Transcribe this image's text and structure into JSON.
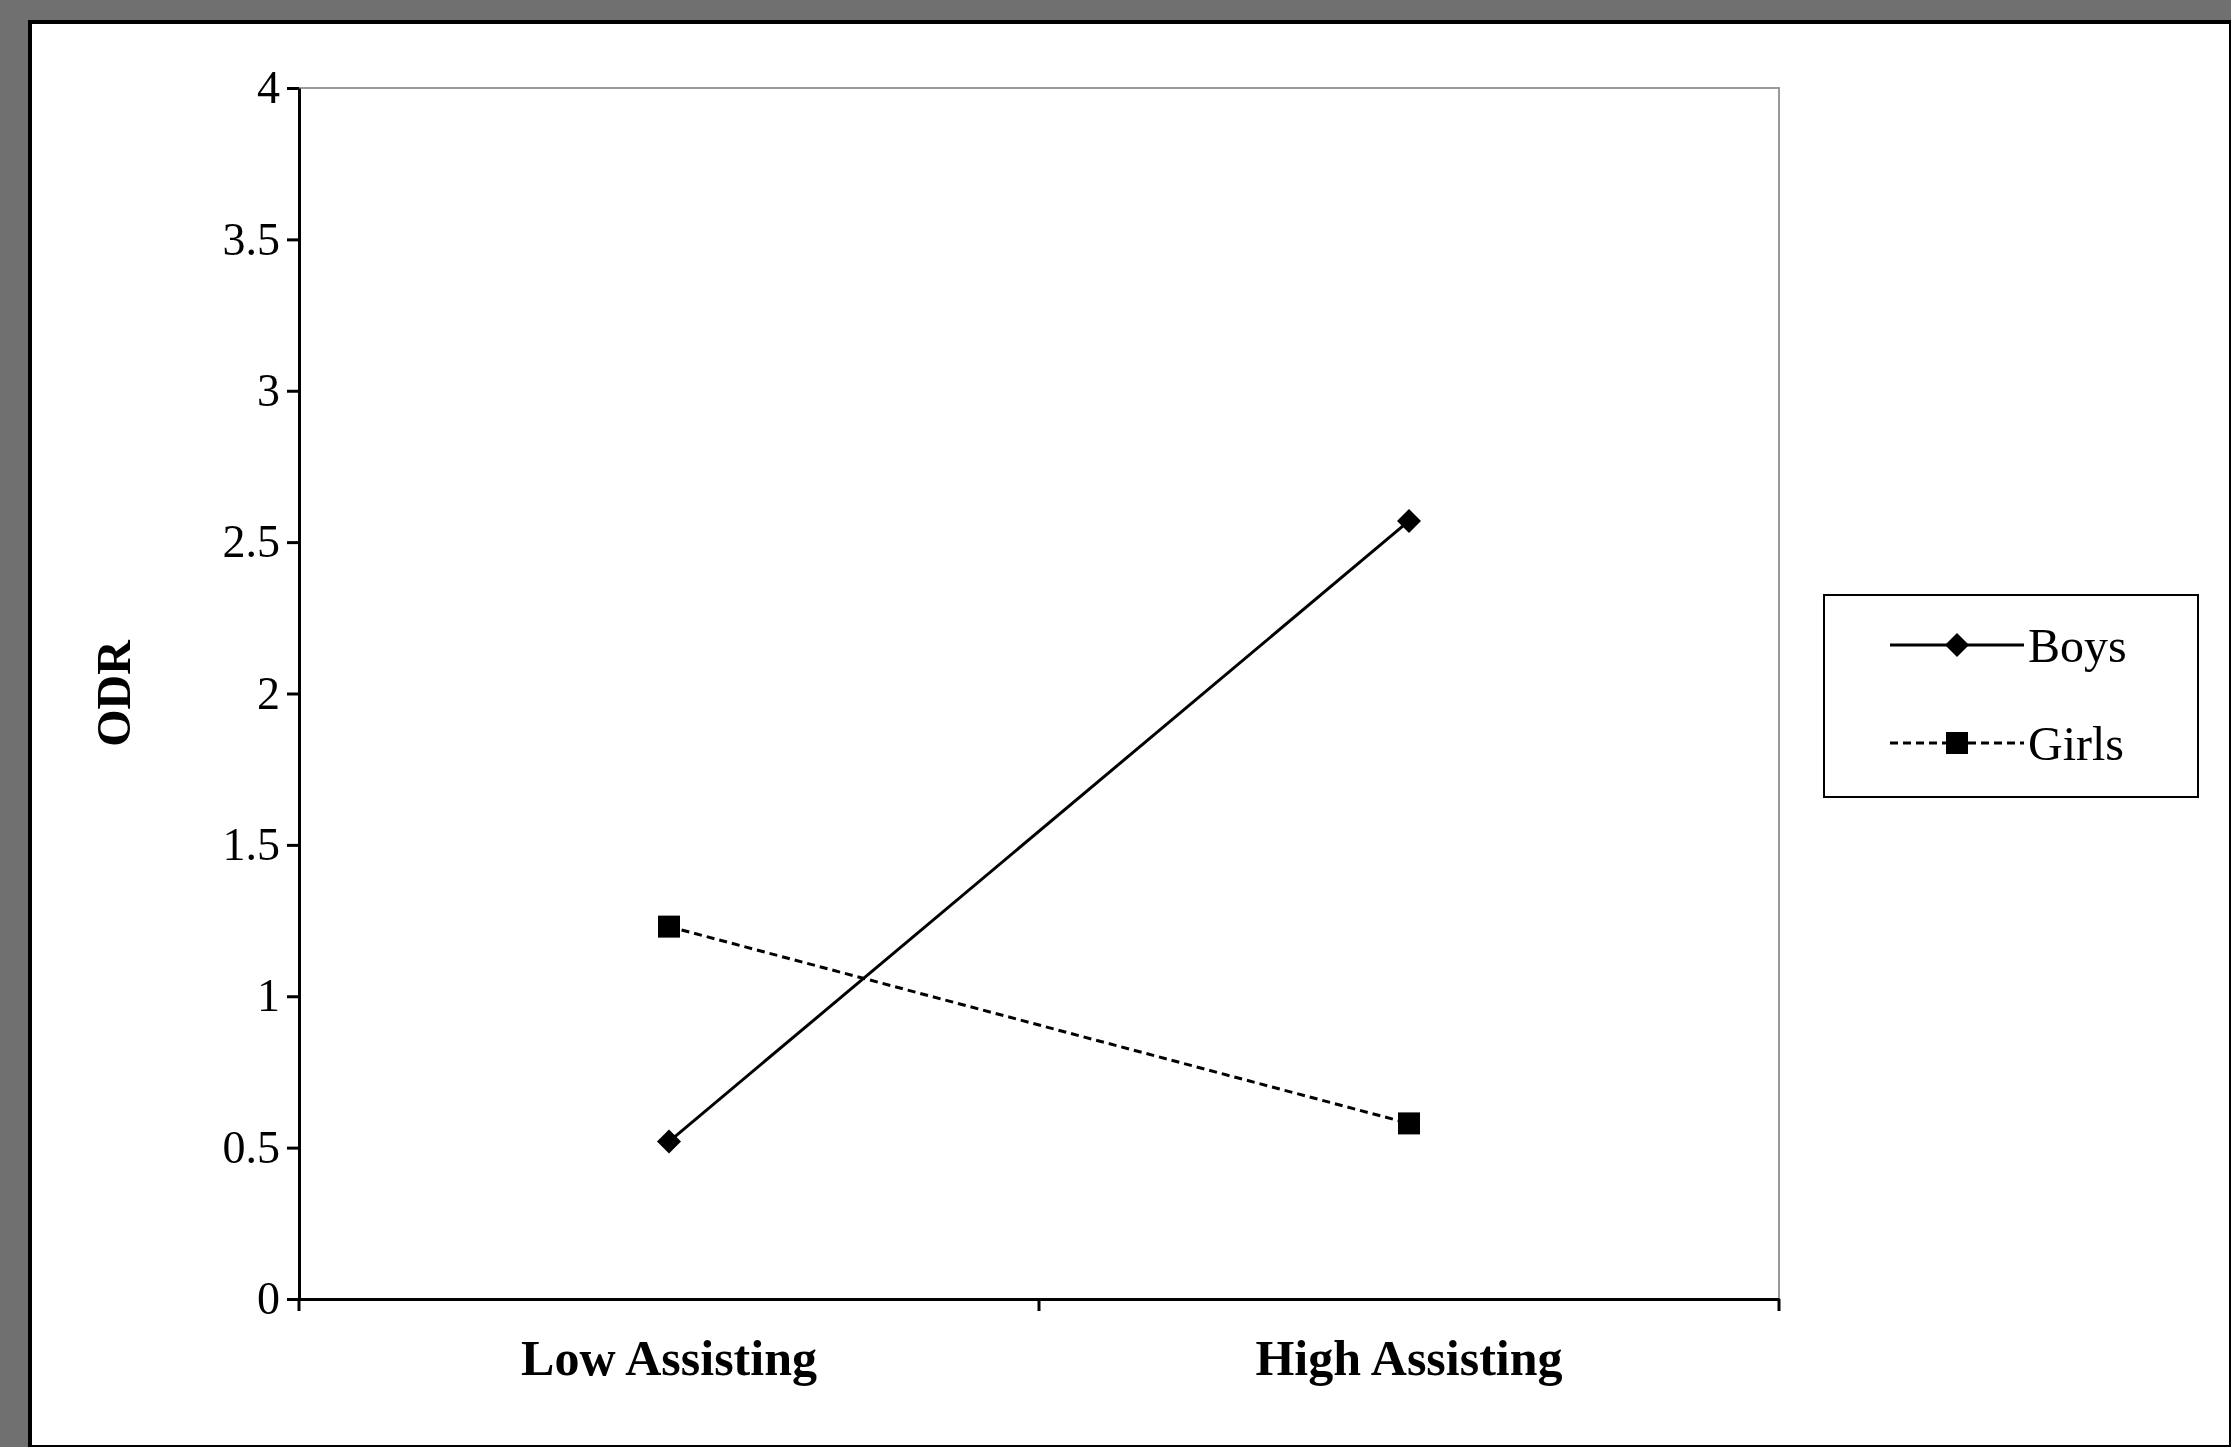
{
  "chart_data": {
    "type": "line",
    "ylabel": "ODR",
    "categories": [
      "Low Assisting",
      "High Assisting"
    ],
    "series": [
      {
        "name": "Boys",
        "color": "#000000",
        "values": [
          0.52,
          2.57
        ],
        "marker": "diamond",
        "line_style": "solid"
      },
      {
        "name": "Girls",
        "color": "#000000",
        "values": [
          1.23,
          0.58
        ],
        "marker": "square",
        "line_style": "dashed"
      }
    ],
    "ylim": [
      0,
      4
    ],
    "yticks": [
      0,
      0.5,
      1,
      1.5,
      2,
      2.5,
      3,
      3.5,
      4
    ],
    "grid": false,
    "legend": "right"
  }
}
